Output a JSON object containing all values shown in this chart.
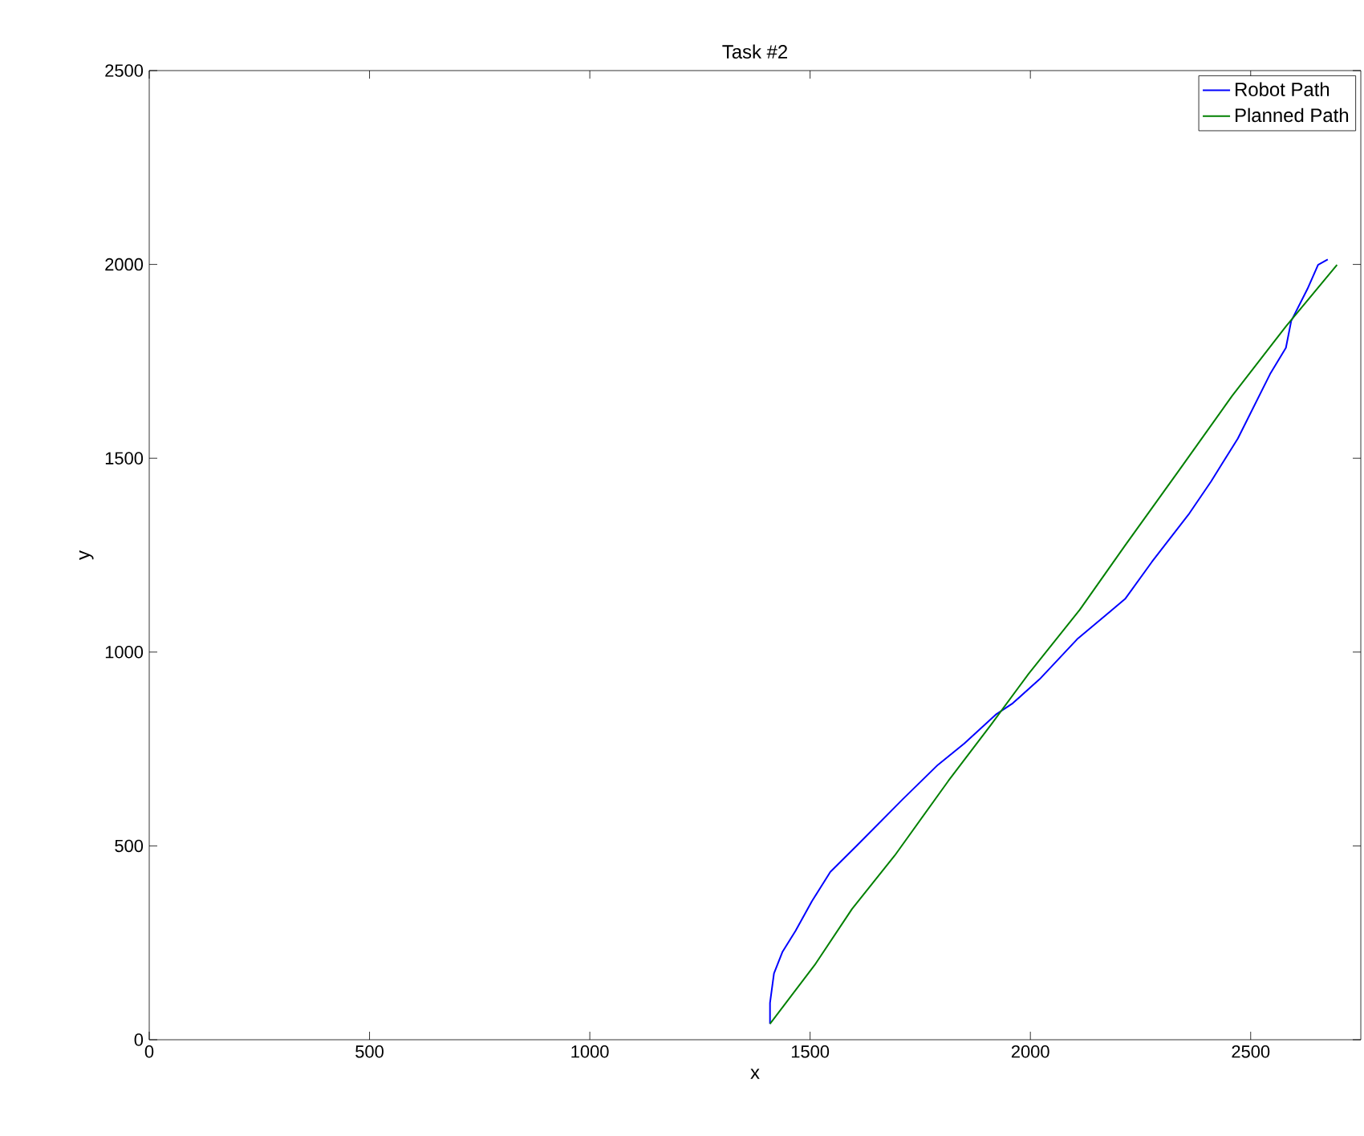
{
  "chart_data": {
    "type": "line",
    "title": "Task #2",
    "xlabel": "x",
    "ylabel": "y",
    "xlim": [
      0,
      2750
    ],
    "ylim": [
      0,
      2500
    ],
    "xticks": [
      0,
      500,
      1000,
      1500,
      2000,
      2500
    ],
    "yticks": [
      0,
      500,
      1000,
      1500,
      2000,
      2500
    ],
    "legend": "top right",
    "series": [
      {
        "name": "Robot Path",
        "color": "#0000ff",
        "x": [
          1409,
          1409,
          1418,
          1437,
          1467,
          1504,
          1546,
          1607,
          1710,
          1790,
          1850,
          1923,
          1960,
          2021,
          2106,
          2215,
          2276,
          2361,
          2410,
          2471,
          2544,
          2580,
          2592,
          2629,
          2653,
          2675
        ],
        "values": [
          41,
          95,
          171,
          226,
          281,
          357,
          433,
          502,
          620,
          709,
          764,
          840,
          868,
          930,
          1033,
          1137,
          1233,
          1358,
          1440,
          1551,
          1717,
          1785,
          1854,
          1937,
          1999,
          2013
        ]
      },
      {
        "name": "Planned Path",
        "color": "#008000",
        "x": [
          1409,
          1510,
          1595,
          1692,
          1814,
          1911,
          1996,
          2112,
          2215,
          2337,
          2458,
          2580,
          2696
        ],
        "values": [
          41,
          192,
          337,
          475,
          668,
          813,
          944,
          1109,
          1275,
          1468,
          1661,
          1840,
          1999
        ]
      }
    ]
  }
}
